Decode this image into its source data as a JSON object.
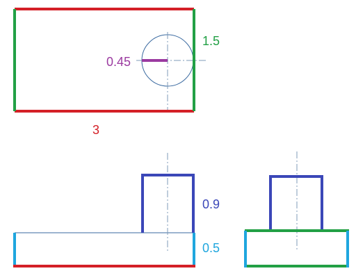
{
  "colors": {
    "length_red": "#d42027",
    "height_green": "#22a045",
    "hole_purple": "#9b3aa0",
    "boss_blue": "#3b47b8",
    "base_cyan": "#1fa6de",
    "outline": "#3a6aa0",
    "center_line": "#7f9bb8"
  },
  "dimensions": {
    "hole_radius": "0.45",
    "width": "1.5",
    "length": "3",
    "boss_height": "0.9",
    "base_height": "0.5"
  },
  "views": {
    "top": "plan",
    "front": "front elevation",
    "side": "side elevation"
  }
}
